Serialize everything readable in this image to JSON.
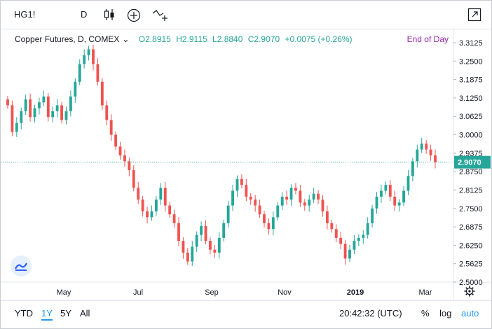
{
  "toolbar": {
    "symbol": "HG1!",
    "interval": "D",
    "candle_icon": "candlestick-icon",
    "compare_icon": "plus-circle-icon",
    "indicators_icon": "indicators-icon",
    "popout_icon": "popout-icon"
  },
  "legend": {
    "title": "Copper Futures, D, COMEX",
    "open": "O2.8915",
    "high": "H2.9115",
    "low": "L2.8840",
    "close": "C2.9070",
    "change": "+0.0075 (+0.26%)",
    "end_of_day": "End of Day"
  },
  "bottom_bar": {
    "ranges": [
      "YTD",
      "1Y",
      "5Y",
      "All"
    ],
    "active_range": "1Y",
    "time": "20:42:32 (UTC)",
    "percent": "%",
    "log": "log",
    "auto": "auto"
  },
  "settings_icon": "gear-icon",
  "colors": {
    "up": "#26a69a",
    "down": "#ef5350",
    "last_price_line": "#26a69a",
    "eod": "#9c27b0"
  },
  "chart_data": {
    "type": "candlestick",
    "title": "Copper Futures, D, COMEX",
    "ylim": [
      2.5,
      3.3125
    ],
    "y_ticks": [
      "3.3125",
      "3.2500",
      "3.1875",
      "3.1250",
      "3.0625",
      "3.0000",
      "2.9375",
      "2.8750",
      "2.8125",
      "2.7500",
      "2.6875",
      "2.6250",
      "2.5625",
      "2.5000"
    ],
    "x_ticks": [
      "May",
      "Jul",
      "Sep",
      "Nov",
      "2019",
      "Mar"
    ],
    "last_price": "2.9070",
    "series": [
      {
        "close": [
          3.1,
          3.01,
          3.04,
          3.08,
          3.12,
          3.06,
          3.09,
          3.11,
          3.13,
          3.06,
          3.08,
          3.1,
          3.05,
          3.08,
          3.13,
          3.18,
          3.24,
          3.27,
          3.29,
          3.24,
          3.18,
          3.1,
          3.05,
          3.0,
          2.96,
          2.93,
          2.91,
          2.88,
          2.82,
          2.78,
          2.74,
          2.72,
          2.74,
          2.78,
          2.82,
          2.76,
          2.73,
          2.7,
          2.64,
          2.6,
          2.57,
          2.62,
          2.66,
          2.69,
          2.64,
          2.61,
          2.6,
          2.65,
          2.7,
          2.76,
          2.81,
          2.85,
          2.83,
          2.79,
          2.78,
          2.76,
          2.73,
          2.7,
          2.68,
          2.72,
          2.76,
          2.79,
          2.78,
          2.82,
          2.81,
          2.77,
          2.76,
          2.78,
          2.8,
          2.78,
          2.74,
          2.7,
          2.68,
          2.65,
          2.63,
          2.58,
          2.61,
          2.64,
          2.65,
          2.66,
          2.7,
          2.75,
          2.79,
          2.81,
          2.83,
          2.79,
          2.76,
          2.77,
          2.81,
          2.86,
          2.91,
          2.95,
          2.97,
          2.95,
          2.93,
          2.907
        ],
        "up_color": "#26a69a",
        "down_color": "#ef5350"
      }
    ]
  }
}
